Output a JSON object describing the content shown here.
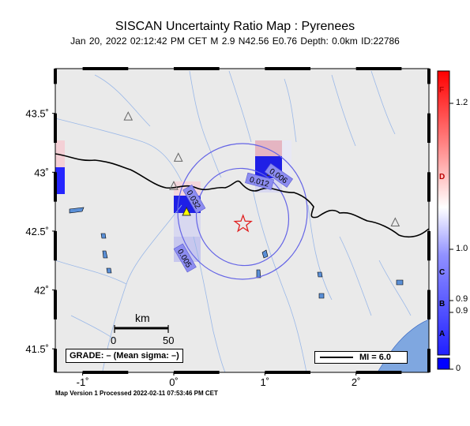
{
  "header": {
    "title": "SISCAN Uncertainty Ratio Map : Pyrenees",
    "subtitle": "Jan 20, 2022 02:12:42 PM CET   M 2.9   N42.56 E0.76   Depth: 0.0km   ID:22786"
  },
  "map": {
    "lon_range": [
      -1.3,
      2.8
    ],
    "lat_range": [
      41.3,
      43.88
    ],
    "lon_ticks": [
      {
        "value": -1,
        "label": "-1˚"
      },
      {
        "value": 0,
        "label": "0˚"
      },
      {
        "value": 1,
        "label": "1˚"
      },
      {
        "value": 2,
        "label": "2˚"
      }
    ],
    "lat_ticks": [
      {
        "value": 41.5,
        "label": "41.5˚"
      },
      {
        "value": 42,
        "label": "42˚"
      },
      {
        "value": 42.5,
        "label": "42.5˚"
      },
      {
        "value": 43,
        "label": "43˚"
      },
      {
        "value": 43.5,
        "label": "43.5˚"
      }
    ],
    "epicenter": {
      "lon": 0.76,
      "lat": 42.56
    },
    "stations": [
      {
        "lon": -0.5,
        "lat": 43.47
      },
      {
        "lon": 0.05,
        "lat": 43.12
      },
      {
        "lon": 0.0,
        "lat": 42.88
      },
      {
        "lon": 2.43,
        "lat": 42.57
      }
    ],
    "triggered_stations": [
      {
        "lon": 0.14,
        "lat": 42.66,
        "label": "0.032"
      },
      {
        "lon": 1.07,
        "lat": 43.0,
        "label": "0.006"
      }
    ],
    "cell_labels": [
      {
        "lon": 0.22,
        "lat": 42.77,
        "text": "0.032",
        "angle": 60
      },
      {
        "lon": 1.15,
        "lat": 42.97,
        "text": "0.006",
        "angle": 35
      },
      {
        "lon": 0.94,
        "lat": 42.92,
        "text": "0.012",
        "angle": 15
      },
      {
        "lon": 0.12,
        "lat": 42.27,
        "text": "0.005",
        "angle": 60
      }
    ],
    "scale_bar": {
      "label": "km",
      "ticks": [
        "0",
        "50"
      ]
    },
    "grade_text": "GRADE: – (Mean sigma: –)",
    "mi_text": "MI = 6.0"
  },
  "colorbar": {
    "letters": [
      "F",
      "D",
      "C",
      "B",
      "A"
    ],
    "values": [
      "1.2",
      "1.0",
      "0.9",
      "0.9",
      "0"
    ],
    "colors": {
      "top": "#ff0000",
      "mid": "#ffffff",
      "bottom": "#0000ff"
    }
  },
  "footer": {
    "text": "Map Version 1 Processed 2022-02-11 07:53:46 PM CET"
  }
}
